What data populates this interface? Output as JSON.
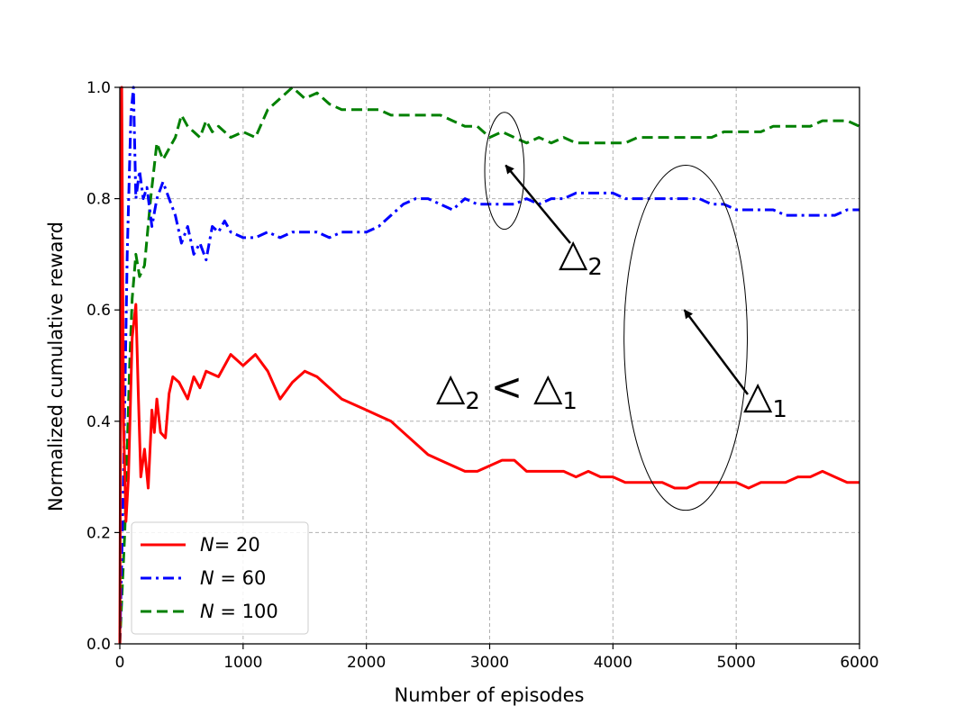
{
  "chart_data": {
    "type": "line",
    "xlabel": "Number of episodes",
    "ylabel": "Normalized cumulative reward",
    "xlim": [
      0,
      6000
    ],
    "ylim": [
      0.0,
      1.0
    ],
    "x_ticks": [
      "0",
      "1000",
      "2000",
      "3000",
      "4000",
      "5000",
      "6000"
    ],
    "y_ticks": [
      "0.0",
      "0.2",
      "0.4",
      "0.6",
      "0.8",
      "1.0"
    ],
    "grid": true,
    "legend_position": "lower-left",
    "series": [
      {
        "name": "N= 20",
        "legend_italic": "N",
        "legend_rest": "= 20",
        "color": "#ff0000",
        "style": "solid",
        "x": [
          0,
          15,
          30,
          50,
          70,
          100,
          130,
          150,
          170,
          200,
          230,
          260,
          280,
          300,
          330,
          370,
          400,
          430,
          480,
          550,
          600,
          650,
          700,
          800,
          900,
          1000,
          1100,
          1200,
          1300,
          1400,
          1500,
          1600,
          1700,
          1800,
          1900,
          2000,
          2100,
          2200,
          2300,
          2400,
          2500,
          2600,
          2700,
          2800,
          2900,
          3000,
          3100,
          3200,
          3300,
          3400,
          3500,
          3600,
          3700,
          3800,
          3900,
          4000,
          4100,
          4200,
          4300,
          4400,
          4500,
          4600,
          4700,
          4800,
          4900,
          5000,
          5100,
          5200,
          5300,
          5400,
          5500,
          5600,
          5700,
          5800,
          5900,
          6000
        ],
        "y": [
          0.0,
          1.0,
          0.4,
          0.22,
          0.3,
          0.55,
          0.61,
          0.45,
          0.3,
          0.35,
          0.28,
          0.42,
          0.38,
          0.44,
          0.38,
          0.37,
          0.45,
          0.48,
          0.47,
          0.44,
          0.48,
          0.46,
          0.49,
          0.48,
          0.52,
          0.5,
          0.52,
          0.49,
          0.44,
          0.47,
          0.49,
          0.48,
          0.46,
          0.44,
          0.43,
          0.42,
          0.41,
          0.4,
          0.38,
          0.36,
          0.34,
          0.33,
          0.32,
          0.31,
          0.31,
          0.32,
          0.33,
          0.33,
          0.31,
          0.31,
          0.31,
          0.31,
          0.3,
          0.31,
          0.3,
          0.3,
          0.29,
          0.29,
          0.29,
          0.29,
          0.28,
          0.28,
          0.29,
          0.29,
          0.29,
          0.29,
          0.28,
          0.29,
          0.29,
          0.29,
          0.3,
          0.3,
          0.31,
          0.3,
          0.29,
          0.29
        ]
      },
      {
        "name": "N = 60",
        "legend_italic": "N",
        "legend_rest": " = 60",
        "color": "#0000ff",
        "style": "dashdot",
        "x": [
          0,
          30,
          60,
          90,
          110,
          130,
          160,
          190,
          220,
          260,
          300,
          350,
          400,
          450,
          500,
          550,
          600,
          650,
          700,
          750,
          800,
          850,
          900,
          1000,
          1100,
          1200,
          1300,
          1400,
          1500,
          1600,
          1700,
          1800,
          1900,
          2000,
          2100,
          2200,
          2300,
          2400,
          2500,
          2600,
          2700,
          2800,
          2900,
          3000,
          3100,
          3200,
          3300,
          3400,
          3500,
          3600,
          3700,
          3800,
          3900,
          4000,
          4100,
          4200,
          4300,
          4400,
          4500,
          4600,
          4700,
          4800,
          4900,
          5000,
          5100,
          5200,
          5300,
          5400,
          5500,
          5600,
          5700,
          5800,
          5900,
          6000
        ],
        "y": [
          0.0,
          0.3,
          0.7,
          0.95,
          1.0,
          0.8,
          0.85,
          0.8,
          0.82,
          0.75,
          0.8,
          0.83,
          0.8,
          0.77,
          0.72,
          0.75,
          0.7,
          0.72,
          0.69,
          0.75,
          0.74,
          0.76,
          0.74,
          0.73,
          0.73,
          0.74,
          0.73,
          0.74,
          0.74,
          0.74,
          0.73,
          0.74,
          0.74,
          0.74,
          0.75,
          0.77,
          0.79,
          0.8,
          0.8,
          0.79,
          0.78,
          0.8,
          0.79,
          0.79,
          0.79,
          0.79,
          0.8,
          0.79,
          0.8,
          0.8,
          0.81,
          0.81,
          0.81,
          0.81,
          0.8,
          0.8,
          0.8,
          0.8,
          0.8,
          0.8,
          0.8,
          0.79,
          0.79,
          0.78,
          0.78,
          0.78,
          0.78,
          0.77,
          0.77,
          0.77,
          0.77,
          0.77,
          0.78,
          0.78
        ]
      },
      {
        "name": "N = 100",
        "legend_italic": "N",
        "legend_rest": " = 100",
        "color": "#008000",
        "style": "dashed",
        "x": [
          0,
          20,
          40,
          60,
          80,
          100,
          130,
          160,
          200,
          250,
          300,
          350,
          400,
          450,
          500,
          550,
          600,
          650,
          700,
          750,
          800,
          850,
          900,
          1000,
          1100,
          1200,
          1300,
          1400,
          1500,
          1600,
          1700,
          1800,
          1900,
          2000,
          2100,
          2200,
          2300,
          2400,
          2500,
          2600,
          2700,
          2800,
          2900,
          3000,
          3100,
          3200,
          3300,
          3400,
          3500,
          3600,
          3700,
          3800,
          3900,
          4000,
          4100,
          4200,
          4300,
          4400,
          4500,
          4600,
          4700,
          4800,
          4900,
          5000,
          5100,
          5200,
          5300,
          5400,
          5500,
          5600,
          5700,
          5800,
          5900,
          6000
        ],
        "y": [
          0.0,
          0.1,
          0.2,
          0.35,
          0.5,
          0.62,
          0.7,
          0.66,
          0.68,
          0.8,
          0.9,
          0.87,
          0.89,
          0.91,
          0.95,
          0.93,
          0.92,
          0.91,
          0.94,
          0.92,
          0.93,
          0.92,
          0.91,
          0.92,
          0.91,
          0.96,
          0.98,
          1.0,
          0.98,
          0.99,
          0.97,
          0.96,
          0.96,
          0.96,
          0.96,
          0.95,
          0.95,
          0.95,
          0.95,
          0.95,
          0.94,
          0.93,
          0.93,
          0.91,
          0.92,
          0.91,
          0.9,
          0.91,
          0.9,
          0.91,
          0.9,
          0.9,
          0.9,
          0.9,
          0.9,
          0.91,
          0.91,
          0.91,
          0.91,
          0.91,
          0.91,
          0.91,
          0.92,
          0.92,
          0.92,
          0.92,
          0.93,
          0.93,
          0.93,
          0.93,
          0.94,
          0.94,
          0.94,
          0.93
        ]
      }
    ],
    "annotations": {
      "delta2_label": {
        "base": "△",
        "sub": "2",
        "point_to": [
          3130,
          0.86
        ]
      },
      "delta1_label": {
        "base": "△",
        "sub": "1",
        "point_to": [
          4580,
          0.6
        ]
      },
      "relation_label": {
        "left_base": "△",
        "left_sub": "2",
        "op": "<",
        "right_base": "△",
        "right_sub": "1"
      },
      "ellipse_delta2": {
        "center": [
          3120,
          0.85
        ],
        "radius_x": 160,
        "radius_y": 0.105
      },
      "ellipse_delta1": {
        "center": [
          4590,
          0.55
        ],
        "radius_x": 500,
        "radius_y": 0.31
      }
    }
  }
}
